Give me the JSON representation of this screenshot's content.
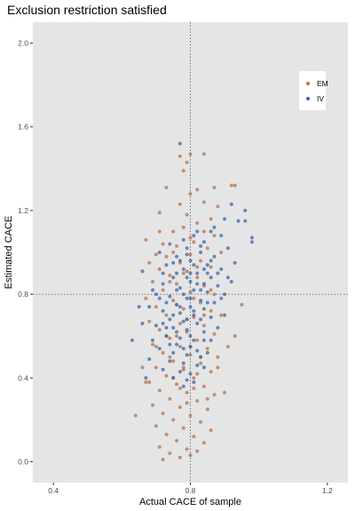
{
  "chart_data": {
    "type": "scatter",
    "title": "Exclusion restriction satisfied",
    "xlabel": "Actual CACE of sample",
    "ylabel": "Estimated CACE",
    "xlim": [
      0.34,
      1.26
    ],
    "ylim": [
      -0.1,
      2.1
    ],
    "x_ticks": [
      0.4,
      0.8,
      1.2
    ],
    "x_tick_labels": [
      "0.4",
      "0.8",
      "1.2"
    ],
    "y_ticks": [
      0.0,
      0.4,
      0.8,
      1.2,
      1.6,
      2.0
    ],
    "y_tick_labels": [
      "0.0",
      "0.4",
      "0.8",
      "1.2",
      "1.6",
      "2.0"
    ],
    "reference_lines": {
      "x": 0.8,
      "y": 0.8
    },
    "grid": false,
    "background": "#e5e5e5",
    "legend_position": "top-right",
    "series": [
      {
        "name": "EM",
        "color": "#b5714a",
        "points": [
          [
            0.8,
            1.47
          ],
          [
            0.77,
            1.46
          ],
          [
            0.84,
            1.47
          ],
          [
            0.79,
            1.43
          ],
          [
            0.78,
            1.39
          ],
          [
            0.82,
            1.3
          ],
          [
            0.73,
            1.31
          ],
          [
            0.87,
            1.31
          ],
          [
            0.92,
            1.32
          ],
          [
            0.93,
            1.32
          ],
          [
            0.8,
            1.28
          ],
          [
            0.84,
            1.24
          ],
          [
            0.77,
            1.23
          ],
          [
            0.88,
            1.22
          ],
          [
            0.71,
            1.19
          ],
          [
            0.79,
            1.18
          ],
          [
            0.86,
            1.16
          ],
          [
            0.82,
            1.14
          ],
          [
            0.71,
            1.1
          ],
          [
            0.75,
            1.1
          ],
          [
            0.78,
            1.12
          ],
          [
            0.84,
            1.1
          ],
          [
            0.87,
            1.08
          ],
          [
            0.67,
            1.06
          ],
          [
            0.72,
            1.04
          ],
          [
            0.76,
            1.03
          ],
          [
            0.81,
            1.05
          ],
          [
            0.85,
            1.02
          ],
          [
            0.89,
            1.0
          ],
          [
            0.7,
            0.99
          ],
          [
            0.73,
            0.98
          ],
          [
            0.8,
            0.99
          ],
          [
            0.68,
            0.95
          ],
          [
            0.77,
            0.95
          ],
          [
            0.83,
            0.96
          ],
          [
            0.86,
            0.93
          ],
          [
            0.71,
            0.92
          ],
          [
            0.79,
            0.91
          ],
          [
            0.74,
            0.89
          ],
          [
            0.82,
            0.88
          ],
          [
            0.69,
            0.86
          ],
          [
            0.76,
            0.85
          ],
          [
            0.84,
            0.84
          ],
          [
            0.72,
            0.82
          ],
          [
            0.8,
            0.81
          ],
          [
            0.87,
            0.8
          ],
          [
            0.67,
            0.78
          ],
          [
            0.75,
            0.77
          ],
          [
            0.83,
            0.76
          ],
          [
            0.7,
            0.74
          ],
          [
            0.78,
            0.73
          ],
          [
            0.86,
            0.72
          ],
          [
            0.73,
            0.7
          ],
          [
            0.81,
            0.69
          ],
          [
            0.68,
            0.67
          ],
          [
            0.77,
            0.66
          ],
          [
            0.84,
            0.65
          ],
          [
            0.71,
            0.63
          ],
          [
            0.79,
            0.62
          ],
          [
            0.87,
            0.61
          ],
          [
            0.74,
            0.59
          ],
          [
            0.82,
            0.58
          ],
          [
            0.69,
            0.56
          ],
          [
            0.77,
            0.55
          ],
          [
            0.85,
            0.54
          ],
          [
            0.72,
            0.52
          ],
          [
            0.8,
            0.51
          ],
          [
            0.88,
            0.5
          ],
          [
            0.75,
            0.48
          ],
          [
            0.83,
            0.47
          ],
          [
            0.7,
            0.45
          ],
          [
            0.78,
            0.44
          ],
          [
            0.86,
            0.43
          ],
          [
            0.73,
            0.41
          ],
          [
            0.81,
            0.4
          ],
          [
            0.68,
            0.38
          ],
          [
            0.76,
            0.37
          ],
          [
            0.84,
            0.36
          ],
          [
            0.71,
            0.34
          ],
          [
            0.79,
            0.33
          ],
          [
            0.87,
            0.32
          ],
          [
            0.74,
            0.3
          ],
          [
            0.82,
            0.29
          ],
          [
            0.69,
            0.27
          ],
          [
            0.77,
            0.26
          ],
          [
            0.85,
            0.25
          ],
          [
            0.72,
            0.23
          ],
          [
            0.8,
            0.22
          ],
          [
            0.75,
            0.2
          ],
          [
            0.83,
            0.19
          ],
          [
            0.7,
            0.17
          ],
          [
            0.78,
            0.16
          ],
          [
            0.86,
            0.15
          ],
          [
            0.73,
            0.13
          ],
          [
            0.81,
            0.12
          ],
          [
            0.76,
            0.1
          ],
          [
            0.84,
            0.09
          ],
          [
            0.71,
            0.07
          ],
          [
            0.79,
            0.06
          ],
          [
            0.74,
            0.04
          ],
          [
            0.82,
            0.05
          ],
          [
            0.77,
            0.02
          ],
          [
            0.72,
            0.01
          ],
          [
            0.8,
            0.03
          ],
          [
            0.64,
            0.22
          ],
          [
            0.67,
            0.38
          ],
          [
            0.66,
            0.45
          ],
          [
            0.9,
            0.33
          ],
          [
            0.91,
            0.55
          ],
          [
            0.93,
            0.6
          ],
          [
            0.95,
            0.75
          ],
          [
            0.89,
            0.7
          ],
          [
            0.76,
            0.6
          ],
          [
            0.8,
            0.55
          ],
          [
            0.83,
            0.5
          ],
          [
            0.78,
            0.45
          ],
          [
            0.81,
            0.35
          ],
          [
            0.75,
            0.4
          ],
          [
            0.79,
            0.28
          ],
          [
            0.85,
            0.3
          ],
          [
            0.74,
            0.5
          ],
          [
            0.77,
            0.35
          ],
          [
            0.82,
            0.42
          ],
          [
            0.88,
            0.45
          ],
          [
            0.7,
            0.55
          ],
          [
            0.73,
            0.6
          ],
          [
            0.79,
            0.68
          ],
          [
            0.84,
            0.7
          ],
          [
            0.76,
            0.75
          ],
          [
            0.81,
            0.78
          ],
          [
            0.86,
            0.82
          ],
          [
            0.74,
            0.86
          ],
          [
            0.78,
            0.9
          ],
          [
            0.82,
            0.93
          ],
          [
            0.75,
            1.0
          ],
          [
            0.8,
            1.07
          ]
        ]
      },
      {
        "name": "IV",
        "color": "#3a65a8",
        "points": [
          [
            0.77,
            1.52
          ],
          [
            0.92,
            1.23
          ],
          [
            0.96,
            1.2
          ],
          [
            0.9,
            1.16
          ],
          [
            0.94,
            1.15
          ],
          [
            0.96,
            1.15
          ],
          [
            0.86,
            1.1
          ],
          [
            0.89,
            1.08
          ],
          [
            0.98,
            1.07
          ],
          [
            0.98,
            1.05
          ],
          [
            0.81,
            1.08
          ],
          [
            0.84,
            1.05
          ],
          [
            0.79,
            1.02
          ],
          [
            0.83,
            1.0
          ],
          [
            0.87,
            0.98
          ],
          [
            0.76,
            0.98
          ],
          [
            0.8,
            0.96
          ],
          [
            0.85,
            0.94
          ],
          [
            0.89,
            0.92
          ],
          [
            0.73,
            0.94
          ],
          [
            0.78,
            0.92
          ],
          [
            0.82,
            0.9
          ],
          [
            0.86,
            0.88
          ],
          [
            0.91,
            0.88
          ],
          [
            0.75,
            0.88
          ],
          [
            0.8,
            0.86
          ],
          [
            0.84,
            0.85
          ],
          [
            0.88,
            0.84
          ],
          [
            0.72,
            0.85
          ],
          [
            0.77,
            0.83
          ],
          [
            0.81,
            0.82
          ],
          [
            0.85,
            0.81
          ],
          [
            0.9,
            0.8
          ],
          [
            0.7,
            0.8
          ],
          [
            0.74,
            0.79
          ],
          [
            0.79,
            0.78
          ],
          [
            0.83,
            0.77
          ],
          [
            0.87,
            0.76
          ],
          [
            0.76,
            0.75
          ],
          [
            0.8,
            0.74
          ],
          [
            0.84,
            0.73
          ],
          [
            0.72,
            0.72
          ],
          [
            0.77,
            0.71
          ],
          [
            0.81,
            0.7
          ],
          [
            0.86,
            0.69
          ],
          [
            0.74,
            0.68
          ],
          [
            0.78,
            0.67
          ],
          [
            0.82,
            0.66
          ],
          [
            0.7,
            0.65
          ],
          [
            0.75,
            0.64
          ],
          [
            0.79,
            0.63
          ],
          [
            0.84,
            0.62
          ],
          [
            0.73,
            0.6
          ],
          [
            0.77,
            0.59
          ],
          [
            0.81,
            0.58
          ],
          [
            0.76,
            0.56
          ],
          [
            0.8,
            0.55
          ],
          [
            0.71,
            0.54
          ],
          [
            0.75,
            0.52
          ],
          [
            0.79,
            0.51
          ],
          [
            0.83,
            0.5
          ],
          [
            0.74,
            0.48
          ],
          [
            0.78,
            0.47
          ],
          [
            0.82,
            0.46
          ],
          [
            0.72,
            0.44
          ],
          [
            0.77,
            0.43
          ],
          [
            0.8,
            0.42
          ],
          [
            0.75,
            0.4
          ],
          [
            0.79,
            0.39
          ],
          [
            0.67,
            0.4
          ],
          [
            0.68,
            0.49
          ],
          [
            0.69,
            0.58
          ],
          [
            0.66,
            0.66
          ],
          [
            0.68,
            0.74
          ],
          [
            0.69,
            0.82
          ],
          [
            0.66,
            0.91
          ],
          [
            0.63,
            0.58
          ],
          [
            0.65,
            0.74
          ],
          [
            0.71,
            1.0
          ],
          [
            0.74,
            1.04
          ],
          [
            0.78,
            1.06
          ],
          [
            0.82,
            1.1
          ],
          [
            0.87,
            1.12
          ],
          [
            0.91,
            1.02
          ],
          [
            0.93,
            0.95
          ],
          [
            0.92,
            0.86
          ],
          [
            0.89,
            0.78
          ],
          [
            0.9,
            0.7
          ],
          [
            0.88,
            0.64
          ],
          [
            0.86,
            0.58
          ],
          [
            0.85,
            0.52
          ],
          [
            0.84,
            0.45
          ],
          [
            0.81,
            0.38
          ],
          [
            0.78,
            0.36
          ],
          [
            0.76,
            0.9
          ],
          [
            0.79,
            0.88
          ],
          [
            0.82,
            0.85
          ],
          [
            0.78,
            0.8
          ],
          [
            0.8,
            0.78
          ],
          [
            0.83,
            0.82
          ],
          [
            0.76,
            0.82
          ],
          [
            0.8,
            0.9
          ],
          [
            0.84,
            0.92
          ],
          [
            0.73,
            0.76
          ],
          [
            0.77,
            0.74
          ],
          [
            0.81,
            0.72
          ],
          [
            0.85,
            0.76
          ],
          [
            0.75,
            0.7
          ],
          [
            0.79,
            0.68
          ],
          [
            0.83,
            0.68
          ],
          [
            0.72,
            0.66
          ],
          [
            0.76,
            0.62
          ],
          [
            0.8,
            0.6
          ],
          [
            0.84,
            0.58
          ],
          [
            0.74,
            0.56
          ],
          [
            0.78,
            0.54
          ],
          [
            0.82,
            0.53
          ],
          [
            0.77,
            0.96
          ],
          [
            0.81,
            0.94
          ],
          [
            0.85,
            0.9
          ],
          [
            0.88,
            0.9
          ],
          [
            0.86,
            0.96
          ],
          [
            0.83,
            1.03
          ],
          [
            0.79,
            0.99
          ],
          [
            0.75,
            0.95
          ],
          [
            0.72,
            0.9
          ],
          [
            0.71,
            0.78
          ],
          [
            0.73,
            0.64
          ]
        ]
      }
    ]
  }
}
